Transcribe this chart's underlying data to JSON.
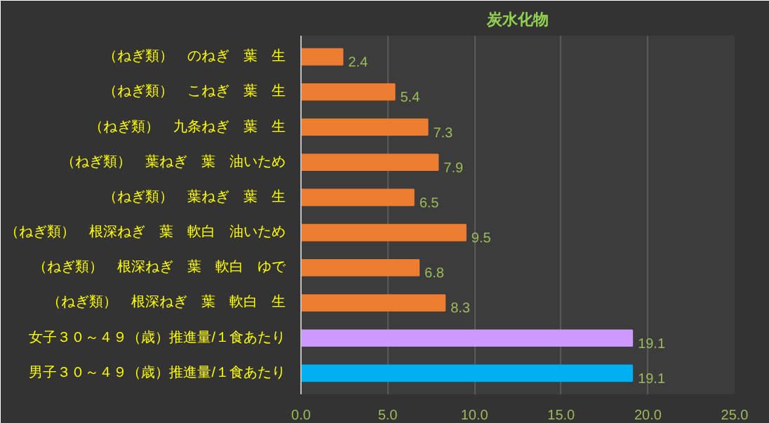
{
  "chart_data": {
    "type": "bar",
    "orientation": "horizontal",
    "title": "炭水化物",
    "categories": [
      "（ねぎ類）　のねぎ　葉　生",
      "（ねぎ類）　こねぎ　葉　生",
      "（ねぎ類）　九条ねぎ　葉　生",
      "（ねぎ類）　葉ねぎ　葉　油いため",
      "（ねぎ類）　葉ねぎ　葉　生",
      "（ねぎ類）　根深ねぎ　葉　軟白　油いため",
      "（ねぎ類）　根深ねぎ　葉　軟白　ゆで",
      "（ねぎ類）　根深ねぎ　葉　軟白　生",
      "女子３０～４９（歳）推進量/１食あたり",
      "男子３０～４９（歳）推進量/１食あたり"
    ],
    "values": [
      2.4,
      5.4,
      7.3,
      7.9,
      6.5,
      9.5,
      6.8,
      8.3,
      19.1,
      19.1
    ],
    "colors": [
      "#ed7d31",
      "#ed7d31",
      "#ed7d31",
      "#ed7d31",
      "#ed7d31",
      "#ed7d31",
      "#ed7d31",
      "#ed7d31",
      "#cc99ff",
      "#00b0f0"
    ],
    "xlim": [
      0,
      25
    ],
    "xticks": [
      {
        "value": 0,
        "label": "0.0"
      },
      {
        "value": 5,
        "label": "5.0"
      },
      {
        "value": 10,
        "label": "10.0"
      },
      {
        "value": 15,
        "label": "15.0"
      },
      {
        "value": 20,
        "label": "20.0"
      },
      {
        "value": 25,
        "label": "25.0"
      }
    ],
    "grid": "x",
    "data_labels": true
  }
}
